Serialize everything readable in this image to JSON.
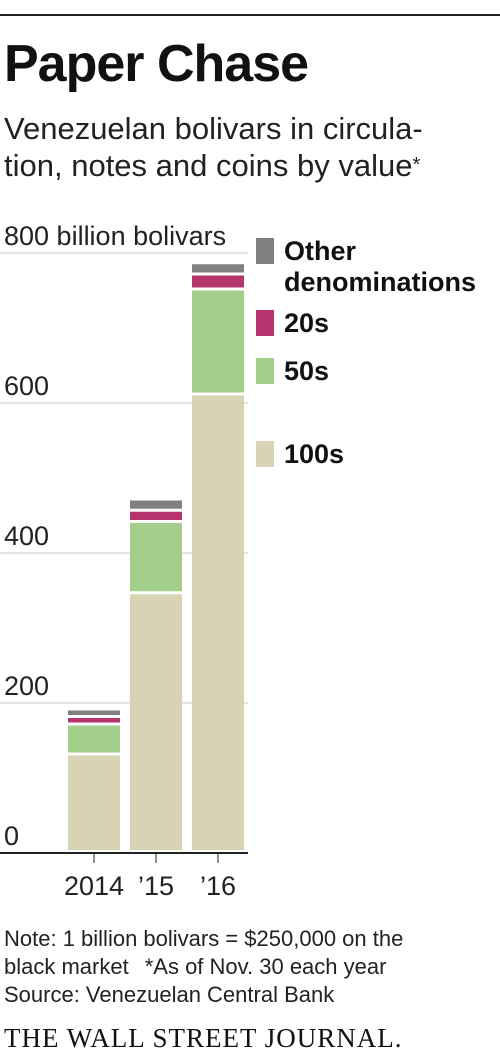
{
  "header": {
    "title": "Paper Chase",
    "subtitle": "Venezuelan bolivars in circula- tion, notes and coins by value",
    "subtitle_mark": "*"
  },
  "chart_data": {
    "type": "bar",
    "stacked": true,
    "categories": [
      "2014",
      "’15",
      "’16"
    ],
    "series": [
      {
        "name": "100s",
        "values": [
          130,
          345,
          610
        ],
        "color": "#d8d3b4"
      },
      {
        "name": "50s",
        "values": [
          40,
          95,
          140
        ],
        "color": "#a3cf8a"
      },
      {
        "name": "20s",
        "values": [
          10,
          15,
          20
        ],
        "color": "#b6346e"
      },
      {
        "name": "Other denominations",
        "values": [
          10,
          15,
          15
        ],
        "color": "#808080"
      }
    ],
    "ylim": [
      0,
      800
    ],
    "yticks": [
      0,
      200,
      400,
      600,
      800
    ],
    "ytick_labels": [
      "0",
      "200",
      "400",
      "600",
      "800 billion bolivars"
    ],
    "legend_position": "right",
    "grid": true
  },
  "notes": {
    "line1": "Note: 1 billion bolivars = $250,000 on the",
    "line2a": "black market",
    "line2b": "*As of Nov. 30 each year",
    "source": "Source: Venezuelan Central Bank"
  },
  "brand": "THE WALL STREET JOURNAL."
}
